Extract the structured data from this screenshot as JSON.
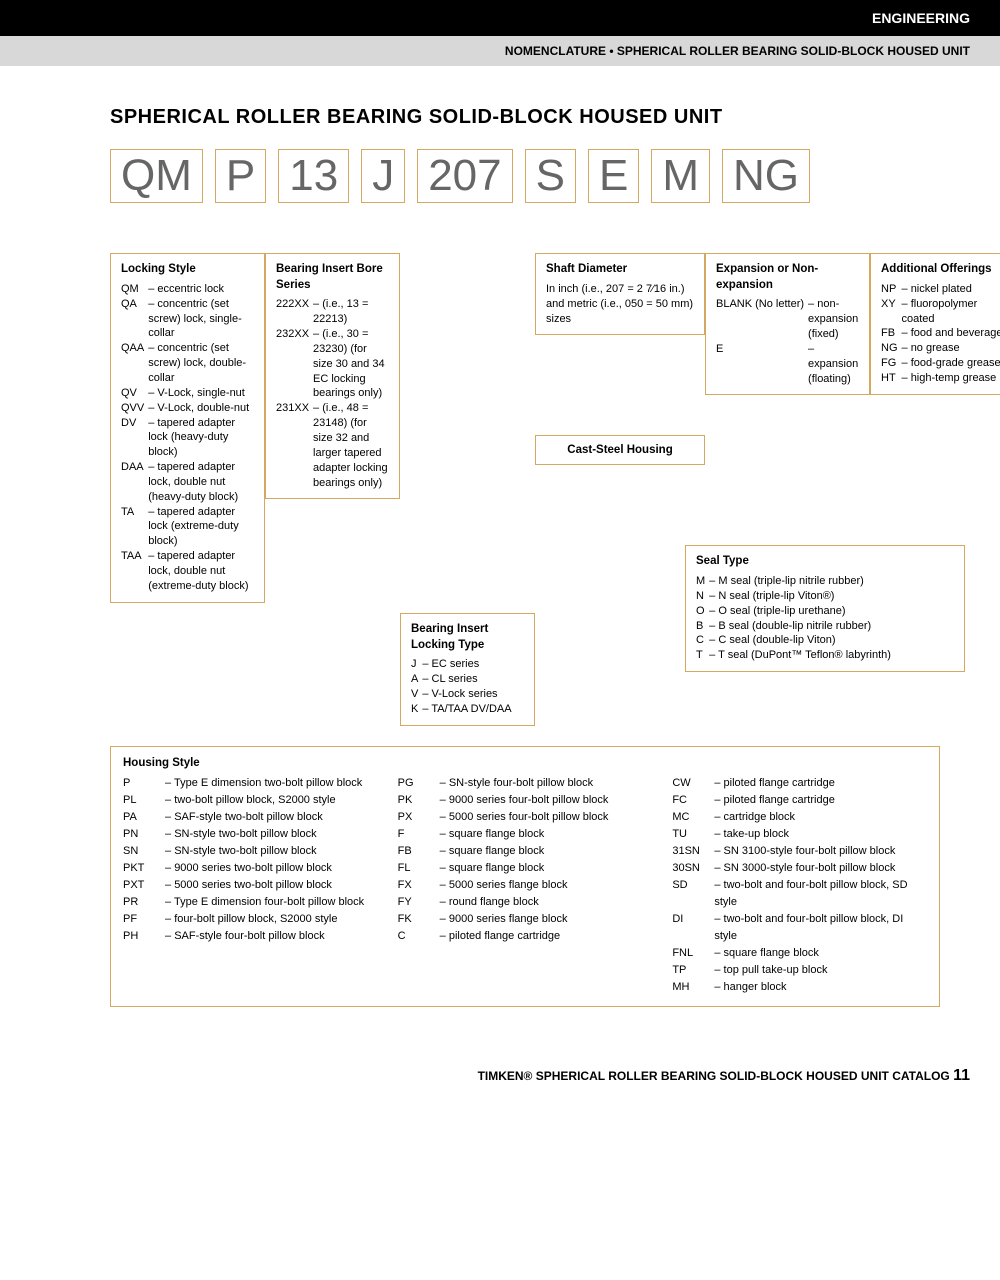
{
  "header": {
    "section": "ENGINEERING",
    "subhead": "NOMENCLATURE • SPHERICAL ROLLER BEARING SOLID-BLOCK HOUSED UNIT"
  },
  "title": "SPHERICAL ROLLER BEARING SOLID-BLOCK HOUSED UNIT",
  "code": [
    "QM",
    "P",
    "13",
    "J",
    "207",
    "S",
    "E",
    "M",
    "NG"
  ],
  "locking_style": {
    "title": "Locking Style",
    "items": [
      {
        "k": "QM",
        "v": "eccentric lock"
      },
      {
        "k": "QA",
        "v": "concentric (set screw) lock, single-collar"
      },
      {
        "k": "QAA",
        "v": "concentric (set screw) lock, double-collar"
      },
      {
        "k": "QV",
        "v": "V-Lock, single-nut"
      },
      {
        "k": "QVV",
        "v": "V-Lock, double-nut"
      },
      {
        "k": "DV",
        "v": "tapered adapter lock (heavy-duty block)"
      },
      {
        "k": "DAA",
        "v": "tapered adapter lock, double nut (heavy-duty block)"
      },
      {
        "k": "TA",
        "v": "tapered adapter lock (extreme-duty block)"
      },
      {
        "k": "TAA",
        "v": "tapered adapter lock, double nut (extreme-duty block)"
      }
    ]
  },
  "bore_series": {
    "title": "Bearing Insert Bore Series",
    "items": [
      {
        "k": "222XX",
        "v": "(i.e., 13 = 22213)"
      },
      {
        "k": "232XX",
        "v": "(i.e., 30 = 23230) (for size 30 and 34 EC locking bearings only)"
      },
      {
        "k": "231XX",
        "v": "(i.e., 48 = 23148) (for size 32 and larger tapered adapter locking bearings only)"
      }
    ]
  },
  "locking_type": {
    "title": "Bearing Insert Locking Type",
    "items": [
      {
        "k": "J",
        "v": "EC series"
      },
      {
        "k": "A",
        "v": "CL series"
      },
      {
        "k": "V",
        "v": "V-Lock series"
      },
      {
        "k": "K",
        "v": "TA/TAA DV/DAA"
      }
    ]
  },
  "shaft_diameter": {
    "title": "Shaft Diameter",
    "text": "In inch (i.e., 207 = 2 7⁄16 in.) and metric (i.e., 050 = 50 mm) sizes"
  },
  "cast_steel": "Cast-Steel Housing",
  "expansion": {
    "title": "Expansion or Non-expansion",
    "items": [
      {
        "k": "BLANK (No letter)",
        "v": "non-expansion (fixed)"
      },
      {
        "k": "E",
        "v": "expansion (floating)"
      }
    ]
  },
  "seal_type": {
    "title": "Seal Type",
    "items": [
      {
        "k": "M",
        "v": "M seal (triple-lip nitrile rubber)"
      },
      {
        "k": "N",
        "v": "N seal (triple-lip Viton®)"
      },
      {
        "k": "O",
        "v": "O seal (triple-lip urethane)"
      },
      {
        "k": "B",
        "v": "B seal (double-lip nitrile rubber)"
      },
      {
        "k": "C",
        "v": "C seal (double-lip Viton)"
      },
      {
        "k": "T",
        "v": "T seal (DuPont™ Teflon® labyrinth)"
      }
    ]
  },
  "additional": {
    "title": "Additional Offerings",
    "items": [
      {
        "k": "NP",
        "v": "nickel plated"
      },
      {
        "k": "XY",
        "v": "fluoropolymer coated"
      },
      {
        "k": "FB",
        "v": "food and beverage"
      },
      {
        "k": "NG",
        "v": "no grease"
      },
      {
        "k": "FG",
        "v": "food-grade grease"
      },
      {
        "k": "HT",
        "v": "high-temp grease"
      }
    ]
  },
  "housing": {
    "title": "Housing Style",
    "col1": [
      {
        "k": "P",
        "v": "Type E dimension two-bolt pillow block"
      },
      {
        "k": "PL",
        "v": "two-bolt pillow block, S2000 style"
      },
      {
        "k": "PA",
        "v": "SAF-style two-bolt pillow block"
      },
      {
        "k": "PN",
        "v": "SN-style two-bolt pillow block"
      },
      {
        "k": "SN",
        "v": "SN-style two-bolt pillow block"
      },
      {
        "k": "PKT",
        "v": "9000 series two-bolt pillow block"
      },
      {
        "k": "PXT",
        "v": "5000 series two-bolt pillow block"
      },
      {
        "k": "PR",
        "v": "Type E dimension four-bolt pillow block"
      },
      {
        "k": "PF",
        "v": "four-bolt pillow block, S2000 style"
      },
      {
        "k": "PH",
        "v": "SAF-style four-bolt pillow block"
      }
    ],
    "col2": [
      {
        "k": "PG",
        "v": "SN-style four-bolt pillow block"
      },
      {
        "k": "PK",
        "v": "9000 series four-bolt pillow block"
      },
      {
        "k": "PX",
        "v": "5000 series four-bolt pillow block"
      },
      {
        "k": "F",
        "v": "square flange block"
      },
      {
        "k": "FB",
        "v": "square flange block"
      },
      {
        "k": "FL",
        "v": "square flange block"
      },
      {
        "k": "FX",
        "v": "5000 series flange block"
      },
      {
        "k": "FY",
        "v": "round flange block"
      },
      {
        "k": "FK",
        "v": "9000 series flange block"
      },
      {
        "k": "C",
        "v": "piloted flange cartridge"
      }
    ],
    "col3": [
      {
        "k": "CW",
        "v": "piloted flange cartridge"
      },
      {
        "k": "FC",
        "v": "piloted flange cartridge"
      },
      {
        "k": "MC",
        "v": "cartridge block"
      },
      {
        "k": "TU",
        "v": "take-up block"
      },
      {
        "k": "31SN",
        "v": "SN 3100-style four-bolt pillow block"
      },
      {
        "k": "30SN",
        "v": "SN 3000-style four-bolt pillow block"
      },
      {
        "k": "SD",
        "v": "two-bolt and four-bolt pillow block, SD style"
      },
      {
        "k": "DI",
        "v": "two-bolt and four-bolt pillow block, DI style"
      },
      {
        "k": "FNL",
        "v": "square flange block"
      },
      {
        "k": "TP",
        "v": "top pull take-up block"
      },
      {
        "k": "MH",
        "v": "hanger block"
      }
    ]
  },
  "footer": {
    "text": "TIMKEN® SPHERICAL ROLLER BEARING SOLID-BLOCK HOUSED UNIT CATALOG",
    "page": "11"
  },
  "colors": {
    "accent": "#d4a860",
    "bg": "#ffffff",
    "text": "#000000",
    "code_text": "#666666",
    "gray_bar": "#d8d8d8"
  }
}
